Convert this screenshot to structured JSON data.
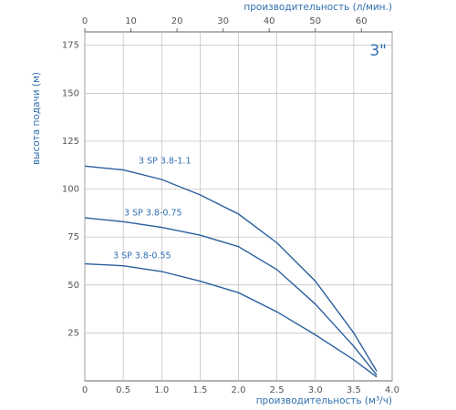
{
  "chart_data": {
    "type": "line",
    "xlabel": "производительность (м³/ч)",
    "x2label": "производительность (л/мин.)",
    "ylabel": "высота подачи (м)",
    "annotation": "3\"",
    "x": [
      0,
      0.5,
      1,
      1.5,
      2,
      2.5,
      3,
      3.5,
      3.8
    ],
    "series": [
      {
        "name": "3 SP 3.8-1.1",
        "color": "#2a5f9e",
        "values": [
          112,
          110,
          105,
          97,
          87,
          72,
          52,
          25,
          5
        ]
      },
      {
        "name": "3 SP 3.8-0.75",
        "color": "#2a5f9e",
        "values": [
          85,
          83,
          80,
          76,
          70,
          58,
          40,
          18,
          3
        ]
      },
      {
        "name": "3 SP 3.8-0.55",
        "color": "#2a5f9e",
        "values": [
          61,
          60,
          57,
          52,
          46,
          36,
          24,
          11,
          2
        ]
      }
    ],
    "xlim": [
      0,
      4
    ],
    "xticks": [
      0,
      0.5,
      {
        "value": 1,
        "label": "1.0"
      },
      1.5,
      {
        "value": 2,
        "label": "2.0"
      },
      2.5,
      {
        "value": 3,
        "label": "3.0"
      },
      3.5,
      {
        "value": 4,
        "label": "4.0"
      }
    ],
    "x2lim": [
      0,
      66.67
    ],
    "x2ticks": [
      0,
      10,
      20,
      30,
      40,
      50,
      60
    ],
    "ylim": [
      0,
      182
    ],
    "yticks": [
      25,
      50,
      75,
      100,
      125,
      150,
      175
    ],
    "grid": true
  }
}
